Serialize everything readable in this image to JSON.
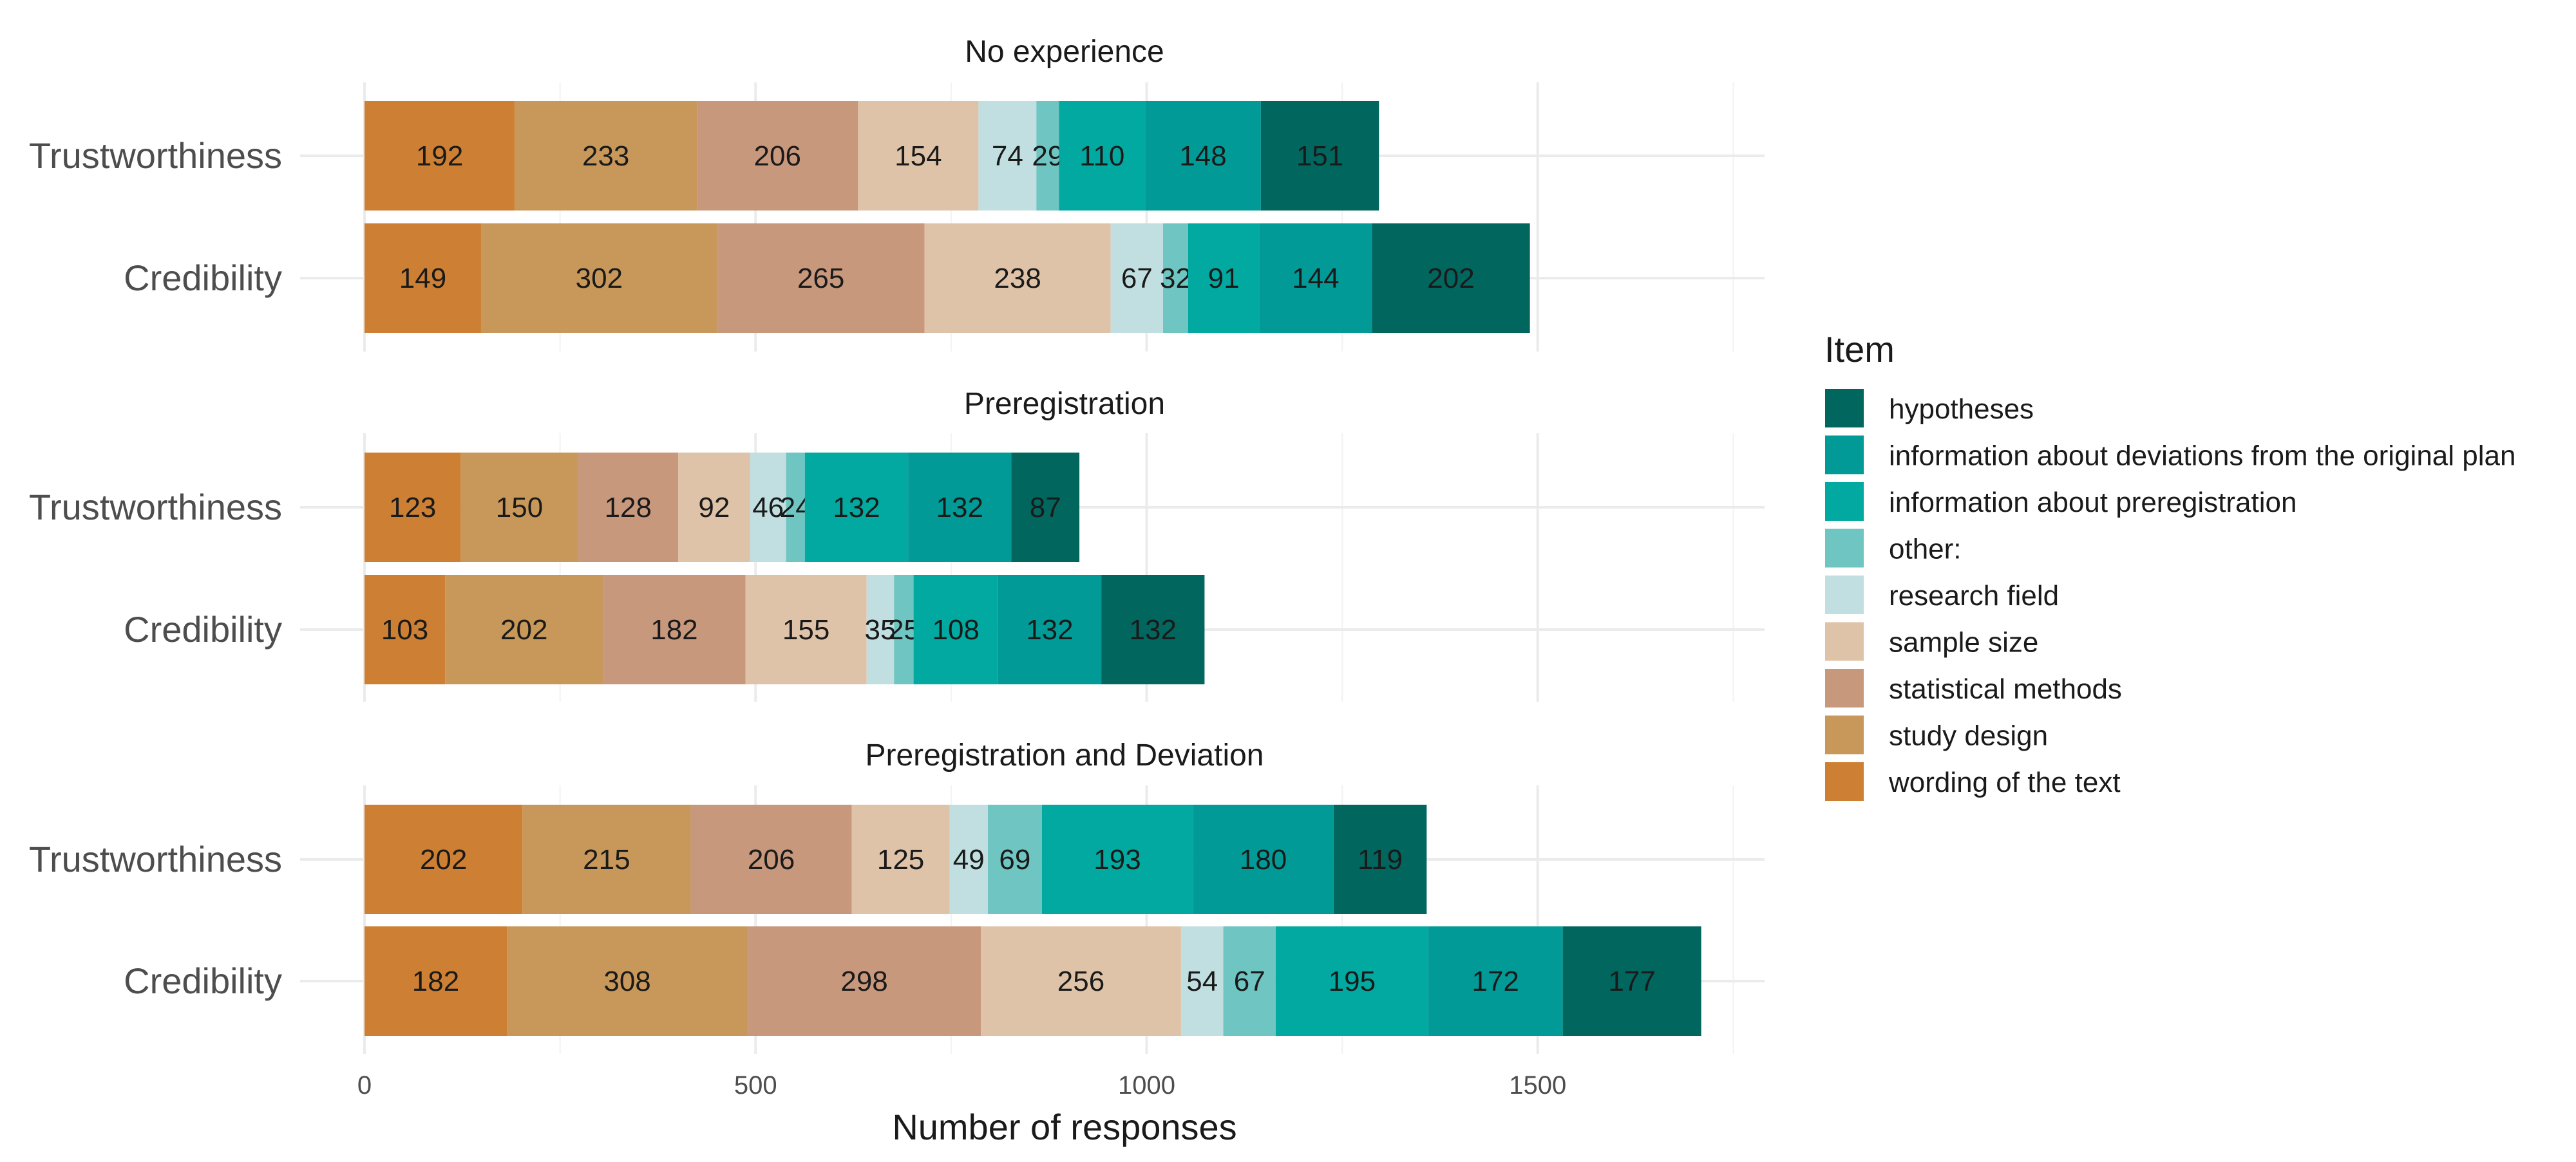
{
  "chart_data": {
    "type": "bar",
    "orientation": "horizontal",
    "stacked": true,
    "xlabel": "Number of responses",
    "xlim": [
      0,
      1790
    ],
    "xticks": [
      0,
      500,
      1000,
      1500
    ],
    "grid": true,
    "legend": {
      "title": "Item",
      "placement": "right",
      "entries": [
        {
          "name": "hypotheses",
          "color": "#01665e"
        },
        {
          "name": "information about deviations from the original plan",
          "color": "#019a96"
        },
        {
          "name": "information about preregistration",
          "color": "#01a9a0"
        },
        {
          "name": "other:",
          "color": "#6fc5c1"
        },
        {
          "name": "research field",
          "color": "#c1dfe0"
        },
        {
          "name": "sample size",
          "color": "#dfc3a8"
        },
        {
          "name": "statistical methods",
          "color": "#c8987d"
        },
        {
          "name": "study design",
          "color": "#c8985a"
        },
        {
          "name": "wording of the text",
          "color": "#cd8034"
        }
      ]
    },
    "stack_order": [
      "wording of the text",
      "study design",
      "statistical methods",
      "sample size",
      "research field",
      "other:",
      "information about preregistration",
      "information about deviations from the original plan",
      "hypotheses"
    ],
    "panels": [
      {
        "title": "No experience",
        "rows": [
          {
            "label": "Trustworthiness",
            "values": [
              192,
              233,
              206,
              154,
              74,
              29,
              110,
              148,
              151
            ]
          },
          {
            "label": "Credibility",
            "values": [
              149,
              302,
              265,
              238,
              67,
              32,
              91,
              144,
              202
            ]
          }
        ]
      },
      {
        "title": "Preregistration",
        "rows": [
          {
            "label": "Trustworthiness",
            "values": [
              123,
              150,
              128,
              92,
              46,
              24,
              132,
              132,
              87
            ]
          },
          {
            "label": "Credibility",
            "values": [
              103,
              202,
              182,
              155,
              35,
              25,
              108,
              132,
              132
            ]
          }
        ]
      },
      {
        "title": "Preregistration and Deviation",
        "rows": [
          {
            "label": "Trustworthiness",
            "values": [
              202,
              215,
              206,
              125,
              49,
              69,
              193,
              180,
              119
            ]
          },
          {
            "label": "Credibility",
            "values": [
              182,
              308,
              298,
              256,
              54,
              67,
              195,
              172,
              177
            ]
          }
        ]
      }
    ]
  }
}
